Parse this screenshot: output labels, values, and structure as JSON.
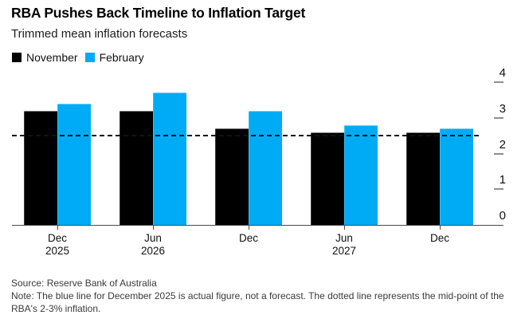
{
  "header": {
    "title": "RBA Pushes Back Timeline to Inflation Target",
    "subtitle": "Trimmed mean inflation forecasts"
  },
  "legend": [
    {
      "label": "November",
      "color": "#000000"
    },
    {
      "label": "February",
      "color": "#00abf5"
    }
  ],
  "chart_data": {
    "type": "bar",
    "title": "RBA Pushes Back Timeline to Inflation Target",
    "subtitle": "Trimmed mean inflation forecasts",
    "categories": [
      {
        "month": "Dec",
        "year": "2025"
      },
      {
        "month": "Jun",
        "year": "2026"
      },
      {
        "month": "Dec",
        "year": ""
      },
      {
        "month": "Jun",
        "year": "2027"
      },
      {
        "month": "Dec",
        "year": ""
      }
    ],
    "series": [
      {
        "name": "November",
        "color": "#000000",
        "values": [
          3.2,
          3.2,
          2.7,
          2.6,
          2.6
        ]
      },
      {
        "name": "February",
        "color": "#00abf5",
        "values": [
          3.4,
          3.7,
          3.2,
          2.8,
          2.7
        ]
      }
    ],
    "y_axis": {
      "side": "right",
      "ticks": [
        0,
        1,
        2,
        3,
        4
      ],
      "range": [
        0,
        4.4
      ]
    },
    "reference_line": {
      "value": 2.5,
      "style": "dashed",
      "color": "#111111"
    },
    "grid": false,
    "legend_position": "top-left"
  },
  "footer": {
    "source": "Source: Reserve Bank of Australia",
    "note": "Note: The blue line for December 2025 is actual figure, not a forecast. The dotted line represents the mid-point of the RBA's 2-3% inflation."
  }
}
